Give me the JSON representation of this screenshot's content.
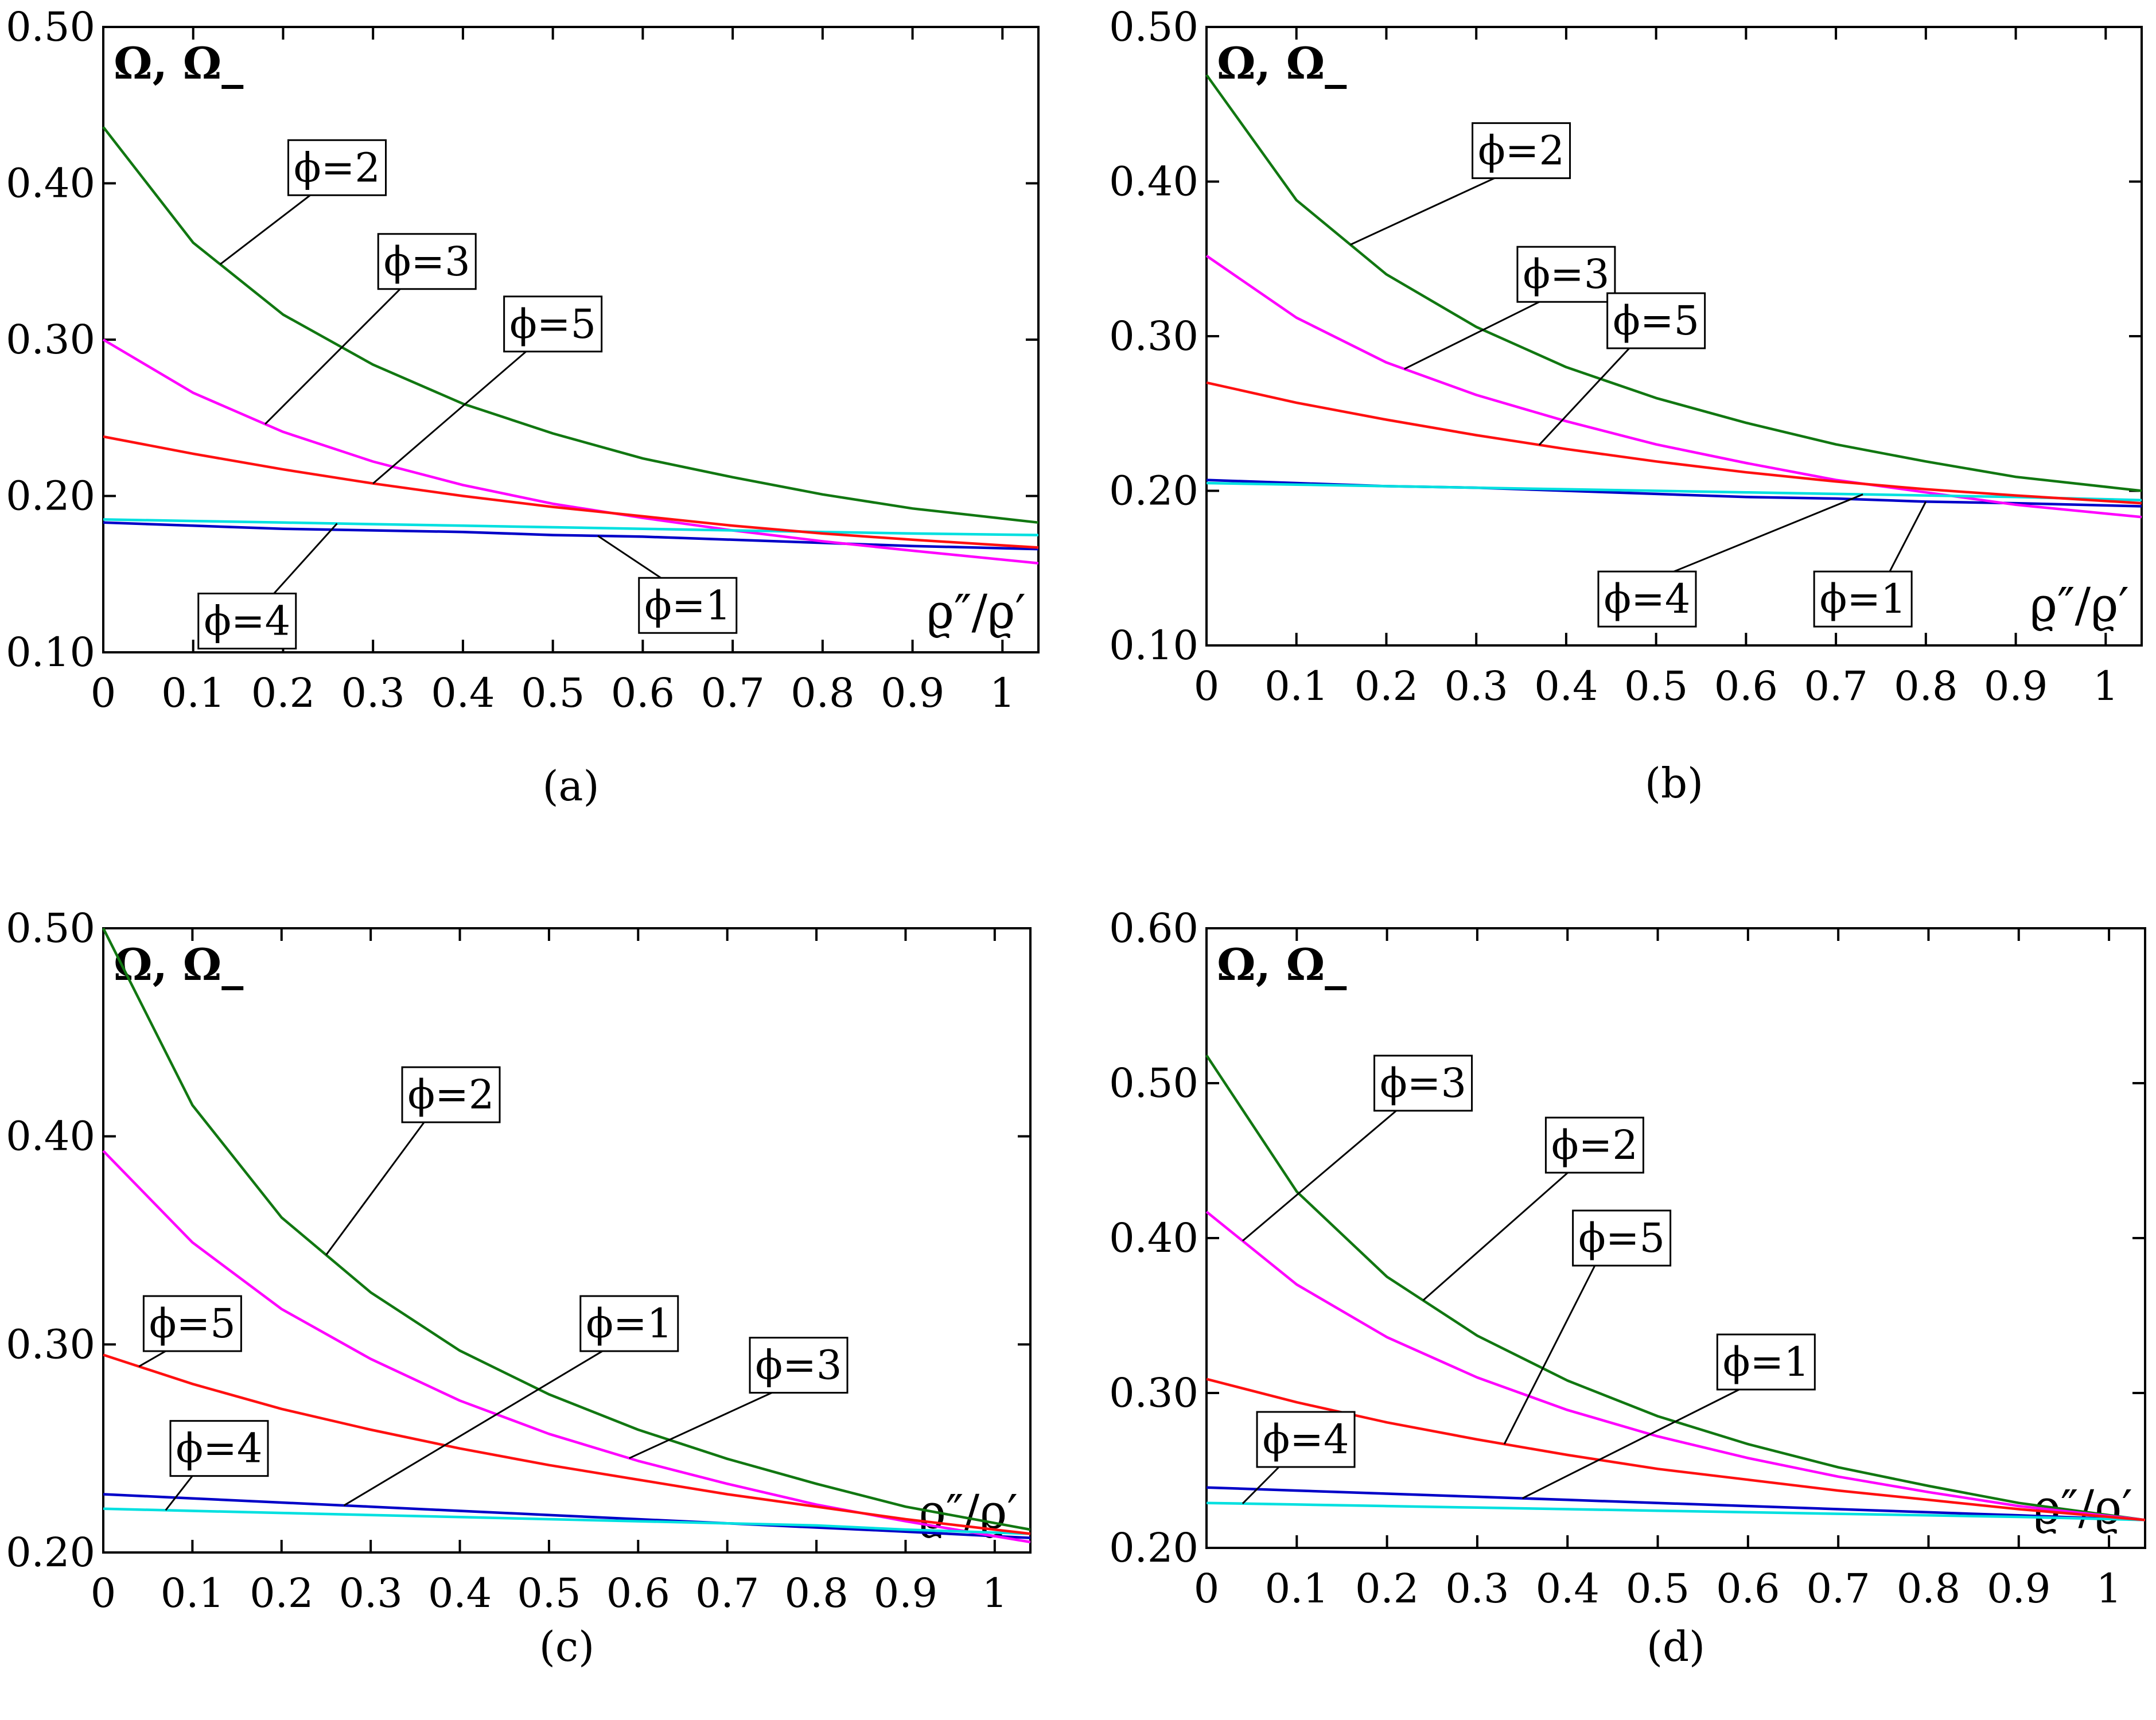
{
  "colors": {
    "phi1": "#0000c8",
    "phi2": "#117711",
    "phi3": "#ff00ff",
    "phi4": "#00e0e0",
    "phi5": "#ff1010",
    "axis": "#000000"
  },
  "chart_data": [
    {
      "type": "line",
      "caption": "(a)",
      "ylabel": "Ω, Ω_",
      "xlabel": "ϱ″/ϱ′",
      "xlim": [
        0,
        1.04
      ],
      "ylim": [
        0.1,
        0.5
      ],
      "xticks": [
        0,
        0.1,
        0.2,
        0.3,
        0.4,
        0.5,
        0.6,
        0.7,
        0.8,
        0.9,
        1
      ],
      "xtick_labels": [
        "0",
        "0.1",
        "0.2",
        "0.3",
        "0.4",
        "0.5",
        "0.6",
        "0.7",
        "0.8",
        "0.9",
        "1"
      ],
      "yticks": [
        0.1,
        0.2,
        0.3,
        0.4,
        0.5
      ],
      "ytick_labels": [
        "0.10",
        "0.20",
        "0.30",
        "0.40",
        "0.50"
      ],
      "x": [
        0,
        0.1,
        0.2,
        0.3,
        0.4,
        0.5,
        0.6,
        0.7,
        0.8,
        0.9,
        1.04
      ],
      "series": [
        {
          "name": "ϕ=1",
          "color_key": "phi1",
          "values": [
            0.183,
            0.181,
            0.179,
            0.178,
            0.177,
            0.175,
            0.174,
            0.172,
            0.17,
            0.168,
            0.166
          ]
        },
        {
          "name": "ϕ=2",
          "color_key": "phi2",
          "values": [
            0.436,
            0.362,
            0.316,
            0.284,
            0.259,
            0.24,
            0.224,
            0.212,
            0.201,
            0.192,
            0.183
          ]
        },
        {
          "name": "ϕ=3",
          "color_key": "phi3",
          "values": [
            0.3,
            0.266,
            0.241,
            0.222,
            0.207,
            0.195,
            0.186,
            0.178,
            0.171,
            0.165,
            0.157
          ]
        },
        {
          "name": "ϕ=4",
          "color_key": "phi4",
          "values": [
            0.185,
            0.184,
            0.183,
            0.182,
            0.181,
            0.18,
            0.179,
            0.178,
            0.177,
            0.176,
            0.175
          ]
        },
        {
          "name": "ϕ=5",
          "color_key": "phi5",
          "values": [
            0.238,
            0.227,
            0.217,
            0.208,
            0.2,
            0.193,
            0.187,
            0.181,
            0.176,
            0.172,
            0.167
          ]
        }
      ],
      "annotations": [
        {
          "label": "ϕ=2",
          "series": "ϕ=2",
          "at_x": 0.13,
          "box_x": 0.26,
          "box_y": 0.41
        },
        {
          "label": "ϕ=3",
          "series": "ϕ=3",
          "at_x": 0.18,
          "box_x": 0.36,
          "box_y": 0.35
        },
        {
          "label": "ϕ=5",
          "series": "ϕ=5",
          "at_x": 0.3,
          "box_x": 0.5,
          "box_y": 0.31
        },
        {
          "label": "ϕ=4",
          "series": "ϕ=4",
          "at_x": 0.26,
          "box_x": 0.16,
          "box_y": 0.12
        },
        {
          "label": "ϕ=1",
          "series": "ϕ=1",
          "at_x": 0.55,
          "box_x": 0.65,
          "box_y": 0.13
        }
      ]
    },
    {
      "type": "line",
      "caption": "(b)",
      "ylabel": "Ω, Ω_",
      "xlabel": "ϱ″/ϱ′",
      "xlim": [
        0,
        1.04
      ],
      "ylim": [
        0.1,
        0.5
      ],
      "xticks": [
        0,
        0.1,
        0.2,
        0.3,
        0.4,
        0.5,
        0.6,
        0.7,
        0.8,
        0.9,
        1
      ],
      "xtick_labels": [
        "0",
        "0.1",
        "0.2",
        "0.3",
        "0.4",
        "0.5",
        "0.6",
        "0.7",
        "0.8",
        "0.9",
        "1"
      ],
      "yticks": [
        0.1,
        0.2,
        0.3,
        0.4,
        0.5
      ],
      "ytick_labels": [
        "0.10",
        "0.20",
        "0.30",
        "0.40",
        "0.50"
      ],
      "x": [
        0,
        0.1,
        0.2,
        0.3,
        0.4,
        0.5,
        0.6,
        0.7,
        0.8,
        0.9,
        1.04
      ],
      "series": [
        {
          "name": "ϕ=1",
          "color_key": "phi1",
          "values": [
            0.207,
            0.205,
            0.203,
            0.202,
            0.2,
            0.198,
            0.196,
            0.195,
            0.193,
            0.192,
            0.19
          ]
        },
        {
          "name": "ϕ=2",
          "color_key": "phi2",
          "values": [
            0.469,
            0.388,
            0.34,
            0.306,
            0.28,
            0.26,
            0.244,
            0.23,
            0.219,
            0.209,
            0.2
          ]
        },
        {
          "name": "ϕ=3",
          "color_key": "phi3",
          "values": [
            0.352,
            0.312,
            0.283,
            0.262,
            0.245,
            0.23,
            0.218,
            0.207,
            0.199,
            0.191,
            0.183
          ]
        },
        {
          "name": "ϕ=4",
          "color_key": "phi4",
          "values": [
            0.205,
            0.204,
            0.203,
            0.202,
            0.201,
            0.2,
            0.199,
            0.198,
            0.197,
            0.196,
            0.194
          ]
        },
        {
          "name": "ϕ=5",
          "color_key": "phi5",
          "values": [
            0.27,
            0.257,
            0.246,
            0.236,
            0.227,
            0.219,
            0.212,
            0.206,
            0.201,
            0.197,
            0.192
          ]
        }
      ],
      "annotations": [
        {
          "label": "ϕ=2",
          "series": "ϕ=2",
          "at_x": 0.16,
          "box_x": 0.35,
          "box_y": 0.42
        },
        {
          "label": "ϕ=3",
          "series": "ϕ=3",
          "at_x": 0.22,
          "box_x": 0.4,
          "box_y": 0.34
        },
        {
          "label": "ϕ=5",
          "series": "ϕ=5",
          "at_x": 0.37,
          "box_x": 0.5,
          "box_y": 0.31
        },
        {
          "label": "ϕ=4",
          "series": "ϕ=4",
          "at_x": 0.73,
          "box_x": 0.49,
          "box_y": 0.13
        },
        {
          "label": "ϕ=1",
          "series": "ϕ=1",
          "at_x": 0.8,
          "box_x": 0.73,
          "box_y": 0.13
        }
      ]
    },
    {
      "type": "line",
      "caption": "(c)",
      "ylabel": "Ω, Ω_",
      "xlabel": "ϱ″/ϱ′",
      "xlim": [
        0,
        1.04
      ],
      "ylim": [
        0.2,
        0.5
      ],
      "xticks": [
        0,
        0.1,
        0.2,
        0.3,
        0.4,
        0.5,
        0.6,
        0.7,
        0.8,
        0.9,
        1
      ],
      "xtick_labels": [
        "0",
        "0.1",
        "0.2",
        "0.3",
        "0.4",
        "0.5",
        "0.6",
        "0.7",
        "0.8",
        "0.9",
        "1"
      ],
      "yticks": [
        0.2,
        0.3,
        0.4,
        0.5
      ],
      "ytick_labels": [
        "0.20",
        "0.30",
        "0.40",
        "0.50"
      ],
      "x": [
        0,
        0.1,
        0.2,
        0.3,
        0.4,
        0.5,
        0.6,
        0.7,
        0.8,
        0.9,
        1.04
      ],
      "series": [
        {
          "name": "ϕ=1",
          "color_key": "phi1",
          "values": [
            0.228,
            0.226,
            0.224,
            0.222,
            0.22,
            0.218,
            0.216,
            0.214,
            0.212,
            0.21,
            0.207
          ]
        },
        {
          "name": "ϕ=2",
          "color_key": "phi2",
          "values": [
            0.5,
            0.415,
            0.361,
            0.325,
            0.297,
            0.276,
            0.259,
            0.245,
            0.233,
            0.222,
            0.211
          ]
        },
        {
          "name": "ϕ=3",
          "color_key": "phi3",
          "values": [
            0.393,
            0.349,
            0.317,
            0.293,
            0.273,
            0.257,
            0.244,
            0.233,
            0.223,
            0.215,
            0.205
          ]
        },
        {
          "name": "ϕ=4",
          "color_key": "phi4",
          "values": [
            0.221,
            0.22,
            0.219,
            0.218,
            0.217,
            0.216,
            0.215,
            0.214,
            0.213,
            0.211,
            0.209
          ]
        },
        {
          "name": "ϕ=5",
          "color_key": "phi5",
          "values": [
            0.295,
            0.281,
            0.269,
            0.259,
            0.25,
            0.242,
            0.235,
            0.228,
            0.222,
            0.216,
            0.209
          ]
        }
      ],
      "annotations": [
        {
          "label": "ϕ=2",
          "series": "ϕ=2",
          "at_x": 0.25,
          "box_x": 0.39,
          "box_y": 0.42
        },
        {
          "label": "ϕ=5",
          "series": "ϕ=5",
          "at_x": 0.04,
          "box_x": 0.1,
          "box_y": 0.31
        },
        {
          "label": "ϕ=1",
          "series": "ϕ=1",
          "at_x": 0.27,
          "box_x": 0.59,
          "box_y": 0.31
        },
        {
          "label": "ϕ=3",
          "series": "ϕ=3",
          "at_x": 0.59,
          "box_x": 0.78,
          "box_y": 0.29
        },
        {
          "label": "ϕ=4",
          "series": "ϕ=4",
          "at_x": 0.07,
          "box_x": 0.13,
          "box_y": 0.25
        }
      ]
    },
    {
      "type": "line",
      "caption": "(d)",
      "ylabel": "Ω, Ω_",
      "xlabel": "ϱ″/ϱ′",
      "xlim": [
        0,
        1.04
      ],
      "ylim": [
        0.2,
        0.6
      ],
      "xticks": [
        0,
        0.1,
        0.2,
        0.3,
        0.4,
        0.5,
        0.6,
        0.7,
        0.8,
        0.9,
        1
      ],
      "xtick_labels": [
        "0",
        "0.1",
        "0.2",
        "0.3",
        "0.4",
        "0.5",
        "0.6",
        "0.7",
        "0.8",
        "0.9",
        "1"
      ],
      "yticks": [
        0.2,
        0.3,
        0.4,
        0.5,
        0.6
      ],
      "ytick_labels": [
        "0.20",
        "0.30",
        "0.40",
        "0.50",
        "0.60"
      ],
      "x": [
        0,
        0.1,
        0.2,
        0.3,
        0.4,
        0.5,
        0.6,
        0.7,
        0.8,
        0.9,
        1.04
      ],
      "series": [
        {
          "name": "ϕ=1",
          "color_key": "phi1",
          "values": [
            0.239,
            0.237,
            0.235,
            0.233,
            0.231,
            0.229,
            0.227,
            0.225,
            0.223,
            0.221,
            0.218
          ]
        },
        {
          "name": "ϕ=2",
          "color_key": "phi2",
          "values": [
            0.518,
            0.43,
            0.375,
            0.337,
            0.308,
            0.285,
            0.267,
            0.252,
            0.24,
            0.229,
            0.218
          ]
        },
        {
          "name": "ϕ=3",
          "color_key": "phi3",
          "values": [
            0.417,
            0.37,
            0.336,
            0.31,
            0.289,
            0.272,
            0.258,
            0.246,
            0.236,
            0.227,
            0.218
          ]
        },
        {
          "name": "ϕ=4",
          "color_key": "phi4",
          "values": [
            0.229,
            0.228,
            0.227,
            0.226,
            0.225,
            0.224,
            0.223,
            0.222,
            0.221,
            0.22,
            0.218
          ]
        },
        {
          "name": "ϕ=5",
          "color_key": "phi5",
          "values": [
            0.309,
            0.294,
            0.281,
            0.27,
            0.26,
            0.251,
            0.244,
            0.237,
            0.231,
            0.225,
            0.218
          ]
        }
      ],
      "annotations": [
        {
          "label": "ϕ=3",
          "series": "ϕ=3",
          "at_x": 0.04,
          "box_x": 0.24,
          "box_y": 0.5
        },
        {
          "label": "ϕ=2",
          "series": "ϕ=2",
          "at_x": 0.24,
          "box_x": 0.43,
          "box_y": 0.46
        },
        {
          "label": "ϕ=5",
          "series": "ϕ=5",
          "at_x": 0.33,
          "box_x": 0.46,
          "box_y": 0.4
        },
        {
          "label": "ϕ=1",
          "series": "ϕ=1",
          "at_x": 0.35,
          "box_x": 0.62,
          "box_y": 0.32
        },
        {
          "label": "ϕ=4",
          "series": "ϕ=4",
          "at_x": 0.04,
          "box_x": 0.11,
          "box_y": 0.27
        }
      ]
    }
  ]
}
